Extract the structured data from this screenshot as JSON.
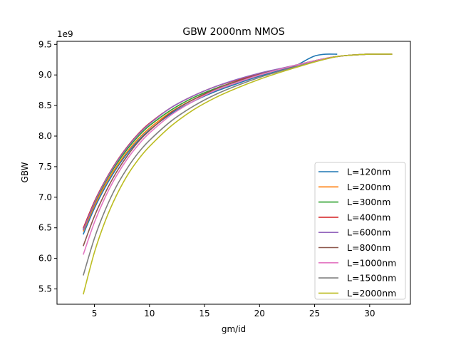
{
  "chart_data": {
    "type": "line",
    "title": "GBW 2000nm NMOS",
    "xlabel": "gm/id",
    "ylabel": "GBW",
    "offset_label": "1e9",
    "xlim": [
      1.6,
      33.7
    ],
    "ylim": [
      5.25,
      9.55
    ],
    "xticks": [
      5,
      10,
      15,
      20,
      25,
      30
    ],
    "yticks": [
      5.5,
      6.0,
      6.5,
      7.0,
      7.5,
      8.0,
      8.5,
      9.0,
      9.5
    ],
    "xtick_labels": [
      "5",
      "10",
      "15",
      "20",
      "25",
      "30"
    ],
    "ytick_labels": [
      "5.5",
      "6.0",
      "6.5",
      "7.0",
      "7.5",
      "8.0",
      "8.5",
      "9.0",
      "9.5"
    ],
    "grid": false,
    "legend_position": "lower-right",
    "series": [
      {
        "name": "L=120nm",
        "color": "#1f77b4",
        "x": [
          4,
          5,
          6,
          7,
          8,
          9,
          10,
          12,
          14,
          16,
          18,
          20,
          22,
          23,
          23.5,
          24,
          24.5,
          25,
          25.5,
          26,
          27
        ],
        "y": [
          6.4,
          6.82,
          7.17,
          7.47,
          7.72,
          7.93,
          8.1,
          8.37,
          8.57,
          8.73,
          8.86,
          8.98,
          9.08,
          9.13,
          9.17,
          9.22,
          9.27,
          9.31,
          9.33,
          9.34,
          9.34
        ]
      },
      {
        "name": "L=200nm",
        "color": "#ff7f0e",
        "x": [
          4,
          5,
          6,
          7,
          8,
          9,
          10,
          12,
          14,
          16,
          18,
          20,
          22,
          24,
          26,
          27,
          28,
          30,
          32
        ],
        "y": [
          6.45,
          6.86,
          7.21,
          7.5,
          7.75,
          7.96,
          8.13,
          8.4,
          8.6,
          8.75,
          8.88,
          9.0,
          9.1,
          9.19,
          9.27,
          9.3,
          9.32,
          9.34,
          9.34
        ]
      },
      {
        "name": "L=300nm",
        "color": "#2ca02c",
        "x": [
          4,
          5,
          6,
          7,
          8,
          9,
          10,
          12,
          14,
          16,
          18,
          20,
          22,
          24,
          26,
          27,
          28,
          30,
          32
        ],
        "y": [
          6.48,
          6.9,
          7.25,
          7.54,
          7.79,
          8.0,
          8.17,
          8.43,
          8.63,
          8.78,
          8.9,
          9.01,
          9.1,
          9.19,
          9.27,
          9.3,
          9.32,
          9.34,
          9.34
        ]
      },
      {
        "name": "L=400nm",
        "color": "#d62728",
        "x": [
          4,
          5,
          6,
          7,
          8,
          9,
          10,
          12,
          14,
          16,
          18,
          20,
          22,
          24,
          26,
          27,
          28,
          30,
          32
        ],
        "y": [
          6.5,
          6.93,
          7.28,
          7.58,
          7.83,
          8.04,
          8.21,
          8.47,
          8.66,
          8.81,
          8.92,
          9.02,
          9.1,
          9.19,
          9.27,
          9.3,
          9.32,
          9.34,
          9.34
        ]
      },
      {
        "name": "L=600nm",
        "color": "#9467bd",
        "x": [
          4,
          5,
          6,
          7,
          8,
          9,
          10,
          12,
          14,
          16,
          18,
          20,
          22,
          24,
          26,
          27,
          28,
          30,
          32
        ],
        "y": [
          6.47,
          6.91,
          7.27,
          7.57,
          7.82,
          8.03,
          8.2,
          8.47,
          8.66,
          8.81,
          8.93,
          9.03,
          9.11,
          9.19,
          9.27,
          9.3,
          9.32,
          9.34,
          9.34
        ]
      },
      {
        "name": "L=800nm",
        "color": "#8c564b",
        "x": [
          4,
          5,
          6,
          7,
          8,
          9,
          10,
          12,
          14,
          16,
          18,
          20,
          22,
          24,
          26,
          27,
          28,
          30,
          32
        ],
        "y": [
          6.21,
          6.69,
          7.08,
          7.41,
          7.68,
          7.91,
          8.09,
          8.39,
          8.6,
          8.77,
          8.9,
          9.01,
          9.1,
          9.19,
          9.27,
          9.3,
          9.32,
          9.34,
          9.34
        ]
      },
      {
        "name": "L=1000nm",
        "color": "#e377c2",
        "x": [
          4,
          5,
          6,
          7,
          8,
          9,
          10,
          12,
          14,
          16,
          18,
          20,
          22,
          24,
          26,
          27,
          28,
          30,
          32
        ],
        "y": [
          6.07,
          6.59,
          7.01,
          7.35,
          7.63,
          7.86,
          8.05,
          8.35,
          8.57,
          8.75,
          8.88,
          9.0,
          9.1,
          9.19,
          9.27,
          9.3,
          9.32,
          9.34,
          9.34
        ]
      },
      {
        "name": "L=1500nm",
        "color": "#7f7f7f",
        "x": [
          4,
          5,
          6,
          7,
          8,
          9,
          10,
          12,
          14,
          16,
          18,
          20,
          22,
          24,
          26,
          27,
          28,
          30,
          32
        ],
        "y": [
          5.73,
          6.33,
          6.8,
          7.18,
          7.48,
          7.73,
          7.93,
          8.25,
          8.49,
          8.68,
          8.83,
          8.96,
          9.07,
          9.17,
          9.26,
          9.3,
          9.32,
          9.34,
          9.34
        ]
      },
      {
        "name": "L=2000nm",
        "color": "#bcbd22",
        "x": [
          4,
          5,
          6,
          7,
          8,
          9,
          10,
          12,
          14,
          16,
          18,
          20,
          22,
          24,
          26,
          27,
          28,
          30,
          32
        ],
        "y": [
          5.42,
          6.1,
          6.62,
          7.03,
          7.36,
          7.62,
          7.83,
          8.17,
          8.43,
          8.63,
          8.79,
          8.93,
          9.05,
          9.16,
          9.26,
          9.3,
          9.32,
          9.34,
          9.34
        ]
      }
    ]
  }
}
